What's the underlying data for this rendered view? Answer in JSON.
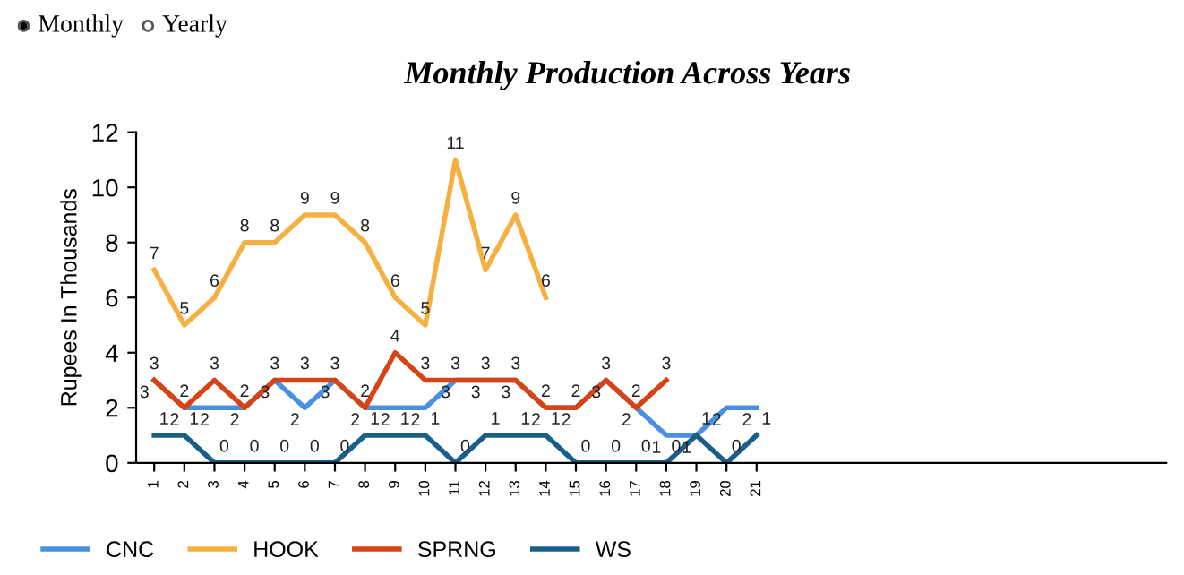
{
  "chart_data": {
    "type": "line",
    "title": "Monthly Production Across Years",
    "ylabel": "Rupees In Thousands",
    "annotations": [
      "Monthly",
      "Yearly"
    ],
    "categories": [
      "1",
      "2",
      "3",
      "4",
      "5",
      "6",
      "7",
      "8",
      "9",
      "10",
      "11",
      "12",
      "13",
      "14",
      "15",
      "16",
      "17",
      "18",
      "19",
      "20",
      "21"
    ],
    "series": [
      {
        "name": "CNC",
        "color": "#4a90e2",
        "values": [
          3,
          2,
          2,
          2,
          3,
          2,
          3,
          2,
          2,
          2,
          3,
          3,
          3,
          2,
          2,
          3,
          2,
          1,
          1,
          2,
          2
        ]
      },
      {
        "name": "HOOK",
        "color": "#f5b041",
        "values": [
          7,
          5,
          6,
          8,
          8,
          9,
          9,
          8,
          6,
          5,
          11,
          7,
          9,
          6,
          null,
          null,
          null,
          null,
          null,
          null,
          null
        ]
      },
      {
        "name": "SPRNG",
        "color": "#d84315",
        "values": [
          3,
          2,
          3,
          2,
          3,
          3,
          3,
          2,
          4,
          3,
          3,
          3,
          3,
          2,
          2,
          3,
          2,
          3,
          null,
          null,
          null
        ]
      },
      {
        "name": "WS",
        "color": "#1a5e8a",
        "values": [
          1,
          1,
          0,
          0,
          0,
          0,
          0,
          1,
          1,
          1,
          0,
          1,
          1,
          1,
          0,
          0,
          0,
          0,
          1,
          0,
          1
        ]
      }
    ],
    "ylim": [
      0,
      12
    ],
    "yticks": [
      0,
      2,
      4,
      6,
      8,
      10,
      12
    ],
    "grid": false,
    "legend": "bottom left",
    "data_labels": true,
    "marker": "none",
    "line_style": "solid"
  }
}
